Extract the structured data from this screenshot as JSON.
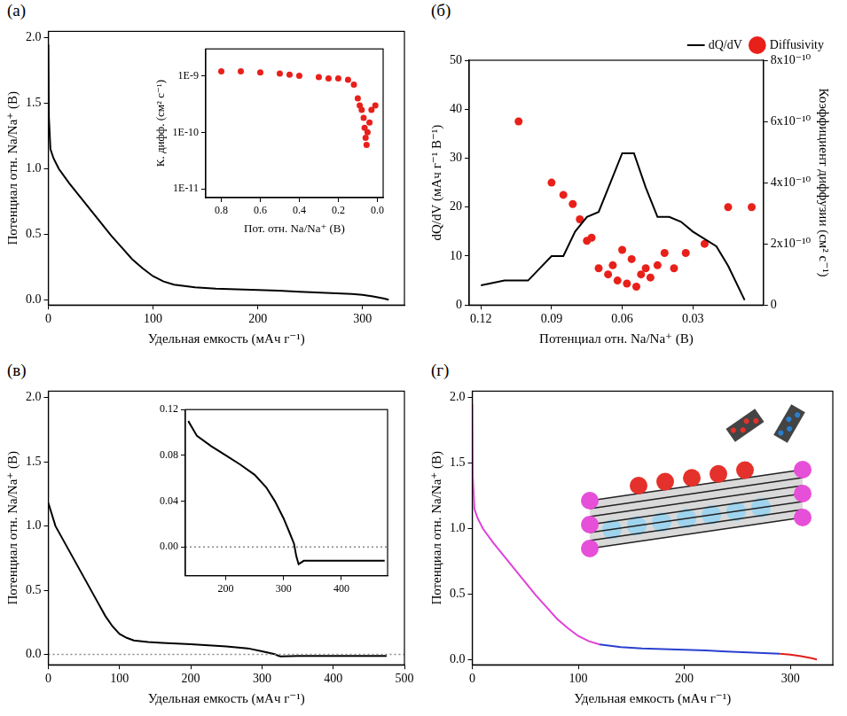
{
  "chart_data": [
    {
      "panel_label": "(а)",
      "type": "line",
      "grid": false,
      "x_label": "Удельная емкость (мАч г⁻¹)",
      "y_label": "Потенциал отн. Na/Na⁺ (В)",
      "xlim": [
        0,
        340
      ],
      "xticks": [
        0,
        100,
        200,
        300
      ],
      "ylim": [
        -0.04,
        2.05
      ],
      "yticks": [
        {
          "value": 0,
          "label": "0.0"
        },
        0.5,
        {
          "value": 1,
          "label": "1.0"
        },
        1.5,
        {
          "value": 2,
          "label": "2.0"
        }
      ],
      "series": [
        {
          "color": "#000000",
          "x": [
            0,
            0.5,
            2,
            5,
            10,
            20,
            30,
            40,
            50,
            60,
            70,
            80,
            90,
            100,
            110,
            120,
            140,
            160,
            180,
            200,
            220,
            240,
            260,
            280,
            290,
            300,
            310,
            320,
            325
          ],
          "values": [
            1.95,
            1.4,
            1.15,
            1.08,
            1.0,
            0.89,
            0.79,
            0.69,
            0.59,
            0.49,
            0.4,
            0.31,
            0.24,
            0.18,
            0.14,
            0.115,
            0.095,
            0.085,
            0.08,
            0.075,
            0.07,
            0.062,
            0.055,
            0.048,
            0.044,
            0.038,
            0.025,
            0.01,
            0.0
          ]
        }
      ],
      "inset": {
        "type": "scatter",
        "grid": false,
        "log": "y",
        "x_label": "Пот. отн. Na/Na⁺ (В)",
        "y_label": "К. дифф. (см² с⁻¹)",
        "xlim": [
          0.88,
          -0.03
        ],
        "xticks": [
          0.8,
          0.6,
          0.4,
          0.2,
          {
            "value": 0,
            "label": "0.0"
          }
        ],
        "ylim": [
          7e-12,
          3e-09
        ],
        "yticks": [
          {
            "value": 1e-11,
            "label": "1E-11"
          },
          {
            "value": 1e-10,
            "label": "1E-10"
          },
          {
            "value": 1e-09,
            "label": "1E-9"
          }
        ],
        "series": [
          {
            "color": "#e8201a",
            "marker": "circle",
            "x": [
              0.8,
              0.7,
              0.6,
              0.5,
              0.45,
              0.4,
              0.3,
              0.25,
              0.2,
              0.15,
              0.12,
              0.1,
              0.09,
              0.08,
              0.07,
              0.065,
              0.06,
              0.055,
              0.05,
              0.04,
              0.03,
              0.01
            ],
            "values": [
              1.2e-09,
              1.2e-09,
              1.15e-09,
              1.1e-09,
              1.05e-09,
              1e-09,
              9.5e-10,
              9e-10,
              9e-10,
              8.5e-10,
              7e-10,
              4e-10,
              3e-10,
              2.5e-10,
              1.8e-10,
              1.2e-10,
              8e-11,
              6e-11,
              1e-10,
              1.5e-10,
              2.5e-10,
              3e-10
            ]
          }
        ]
      }
    },
    {
      "panel_label": "(б)",
      "type": "line",
      "grid": false,
      "legend": "top right",
      "x_label": "Потенциал отн. Na/Na⁺ (В)",
      "y_label": "dQ/dV (мАч г⁻¹ В⁻¹)",
      "y2_label": "Коэффициент диффузии (см² с⁻¹)",
      "xlim": [
        0.125,
        0
      ],
      "xticks": [
        0.12,
        0.09,
        0.06,
        0.03
      ],
      "ylim": [
        0,
        50
      ],
      "yticks": [
        0,
        10,
        20,
        30,
        40,
        50
      ],
      "y2lim": [
        0,
        8e-10
      ],
      "y2ticks": [
        0,
        {
          "value": 2e-10,
          "label": "2x10⁻¹⁰"
        },
        {
          "value": 4e-10,
          "label": "4x10⁻¹⁰"
        },
        {
          "value": 6e-10,
          "label": "6x10⁻¹⁰"
        },
        {
          "value": 8e-10,
          "label": "8x10⁻¹⁰"
        }
      ],
      "series": [
        {
          "name": "dQ/dV",
          "type": "line",
          "color": "#000000",
          "x": [
            0.12,
            0.11,
            0.1,
            0.09,
            0.085,
            0.08,
            0.075,
            0.07,
            0.065,
            0.06,
            0.055,
            0.05,
            0.045,
            0.04,
            0.035,
            0.03,
            0.02,
            0.015,
            0.008
          ],
          "values": [
            4,
            5,
            5,
            10,
            10,
            15,
            18,
            19,
            25,
            31,
            31,
            24,
            18,
            18,
            17,
            15,
            12,
            8,
            1
          ]
        },
        {
          "name": "Diffusivity",
          "type": "scatter",
          "marker": "circle",
          "color": "#e8201a",
          "axis": "y2",
          "x": [
            0.104,
            0.09,
            0.085,
            0.081,
            0.078,
            0.075,
            0.073,
            0.07,
            0.066,
            0.064,
            0.062,
            0.06,
            0.058,
            0.056,
            0.054,
            0.052,
            0.05,
            0.048,
            0.045,
            0.042,
            0.038,
            0.033,
            0.025,
            0.015,
            0.005
          ],
          "values": [
            6e-10,
            4e-10,
            3.6e-10,
            3.3e-10,
            2.8e-10,
            2.1e-10,
            2.2e-10,
            1.2e-10,
            1e-10,
            1.3e-10,
            8e-11,
            1.8e-10,
            7e-11,
            1.5e-10,
            6e-11,
            1e-10,
            1.2e-10,
            9e-11,
            1.3e-10,
            1.7e-10,
            1.2e-10,
            1.7e-10,
            2e-10,
            3.2e-10,
            3.2e-10
          ]
        }
      ]
    },
    {
      "panel_label": "(в)",
      "type": "line",
      "grid": false,
      "x_label": "Удельная емкость (мАч г⁻¹)",
      "y_label": "Потенциал отн. Na/Na⁺ (В)",
      "xlim": [
        0,
        500
      ],
      "xticks": [
        0,
        100,
        200,
        300,
        400,
        500
      ],
      "ylim": [
        -0.08,
        2.05
      ],
      "yticks": [
        {
          "value": 0,
          "label": "0.0"
        },
        0.5,
        {
          "value": 1,
          "label": "1.0"
        },
        1.5,
        {
          "value": 2,
          "label": "2.0"
        }
      ],
      "series": [
        {
          "color": "#888888",
          "line_style": "dotted",
          "x": [
            0,
            500
          ],
          "values": [
            0,
            0
          ]
        },
        {
          "color": "#000000",
          "x": [
            0,
            10,
            20,
            30,
            40,
            50,
            60,
            70,
            80,
            90,
            100,
            110,
            120,
            140,
            160,
            200,
            250,
            280,
            300,
            310,
            318,
            322,
            326,
            350,
            400,
            450,
            475
          ],
          "values": [
            1.18,
            1.0,
            0.9,
            0.8,
            0.7,
            0.6,
            0.5,
            0.4,
            0.3,
            0.22,
            0.16,
            0.13,
            0.11,
            0.097,
            0.09,
            0.08,
            0.063,
            0.048,
            0.025,
            0.013,
            0.003,
            -0.008,
            -0.015,
            -0.012,
            -0.012,
            -0.012,
            -0.012
          ]
        }
      ],
      "inset": {
        "type": "line",
        "grid": false,
        "xlim": [
          130,
          480
        ],
        "xticks": [
          200,
          300,
          400
        ],
        "ylim": [
          -0.025,
          0.12
        ],
        "yticks": [
          {
            "value": 0,
            "label": "0.00"
          },
          0.04,
          0.08,
          0.12
        ],
        "series": [
          {
            "color": "#888888",
            "line_style": "dotted",
            "x": [
              130,
              480
            ],
            "values": [
              0,
              0
            ]
          },
          {
            "color": "#000000",
            "x": [
              135,
              150,
              175,
              200,
              225,
              250,
              270,
              285,
              300,
              310,
              318,
              322,
              326,
              335,
              360,
              400,
              440,
              475
            ],
            "values": [
              0.11,
              0.097,
              0.088,
              0.08,
              0.072,
              0.063,
              0.052,
              0.04,
              0.025,
              0.013,
              0.003,
              -0.008,
              -0.015,
              -0.012,
              -0.012,
              -0.012,
              -0.012,
              -0.012
            ]
          }
        ]
      }
    },
    {
      "panel_label": "(г)",
      "type": "line",
      "grid": false,
      "x_label": "Удельная емкость (мАч г⁻¹)",
      "y_label": "Потенциал отн. Na/Na⁺ (В)",
      "xlim": [
        0,
        340
      ],
      "xticks": [
        0,
        100,
        200,
        300
      ],
      "ylim": [
        -0.04,
        2.05
      ],
      "yticks": [
        {
          "value": 0,
          "label": "0.0"
        },
        0.5,
        {
          "value": 1,
          "label": "1.0"
        },
        1.5,
        {
          "value": 2,
          "label": "2.0"
        }
      ],
      "series": [
        {
          "color": "#e040d8",
          "x": [
            0,
            0.5,
            2,
            5,
            10,
            20,
            30,
            40,
            50,
            60,
            70,
            80,
            90,
            100,
            110,
            120
          ],
          "values": [
            1.95,
            1.4,
            1.15,
            1.08,
            1.0,
            0.89,
            0.79,
            0.69,
            0.59,
            0.49,
            0.4,
            0.31,
            0.24,
            0.18,
            0.14,
            0.115
          ]
        },
        {
          "color": "#2a3fd0",
          "x": [
            120,
            140,
            160,
            180,
            200,
            220,
            240,
            260,
            280,
            290
          ],
          "values": [
            0.115,
            0.095,
            0.085,
            0.08,
            0.075,
            0.07,
            0.062,
            0.055,
            0.048,
            0.044
          ]
        },
        {
          "color": "#e0201a",
          "x": [
            290,
            300,
            310,
            320,
            325
          ],
          "values": [
            0.044,
            0.038,
            0.025,
            0.01,
            0.0
          ]
        }
      ]
    }
  ]
}
